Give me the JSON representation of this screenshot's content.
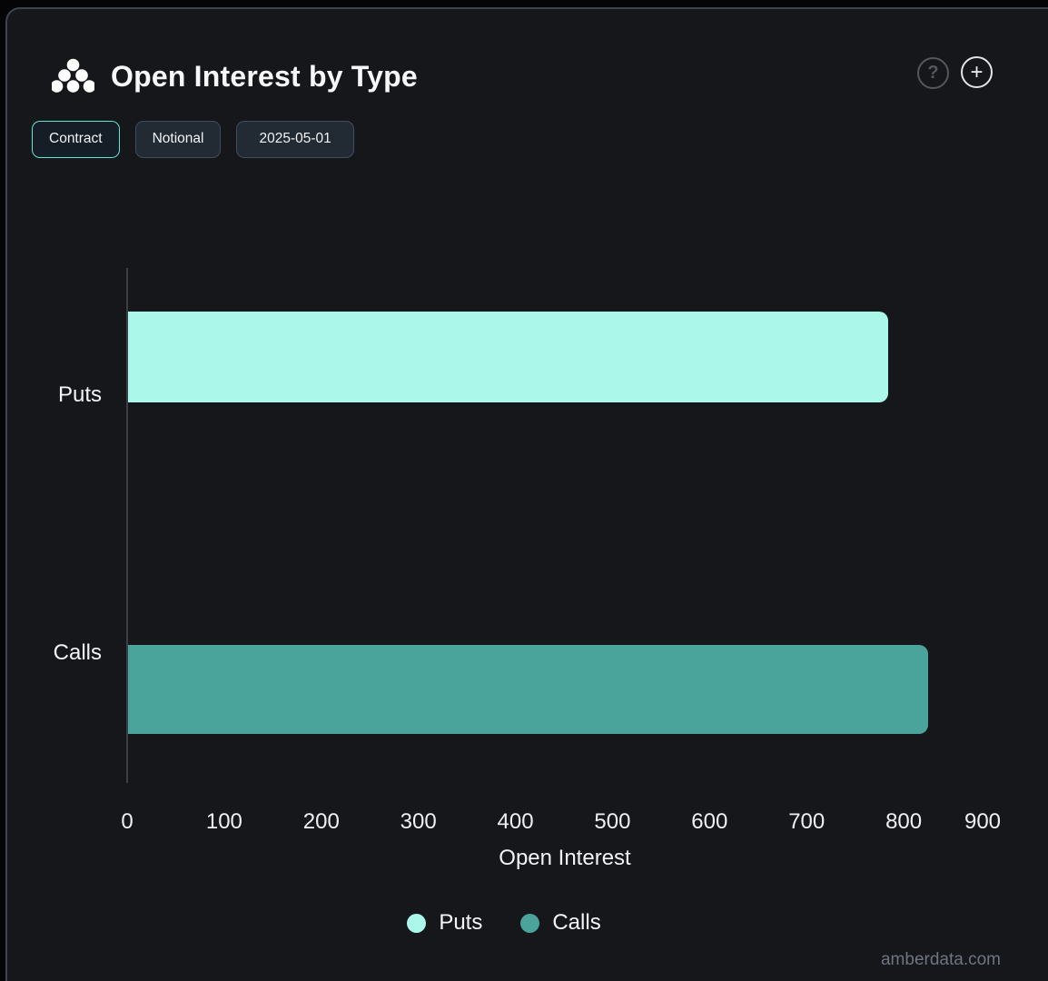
{
  "header": {
    "title": "Open Interest by Type"
  },
  "actions": {
    "help_glyph": "?",
    "add_glyph": "+"
  },
  "toolbar": {
    "buttons": [
      {
        "label": "Contract",
        "active": true
      },
      {
        "label": "Notional",
        "active": false
      },
      {
        "label": "2025-05-01",
        "active": false
      }
    ]
  },
  "chart_data": {
    "type": "bar",
    "orientation": "horizontal",
    "title": "Open Interest by Type",
    "categories": [
      "Puts",
      "Calls"
    ],
    "values": [
      783,
      824
    ],
    "colors": [
      "#abf8ea",
      "#4aa49b"
    ],
    "xlabel": "Open Interest",
    "ylabel": "",
    "xlim": [
      0,
      900
    ],
    "xticks": [
      0,
      100,
      200,
      300,
      400,
      500,
      600,
      700,
      800,
      900
    ],
    "grid": false,
    "legend_position": "bottom",
    "legend": [
      {
        "label": "Puts",
        "color": "#abf8ea"
      },
      {
        "label": "Calls",
        "color": "#4aa49b"
      }
    ]
  },
  "colors": {
    "panel_bg": "#16171b",
    "panel_border": "#3e4550",
    "accent": "#5fe6d0",
    "axis_line": "#3c3f45",
    "text": "#f4f5f6",
    "muted_text": "#6e7580"
  },
  "watermark": "amberdata.com"
}
